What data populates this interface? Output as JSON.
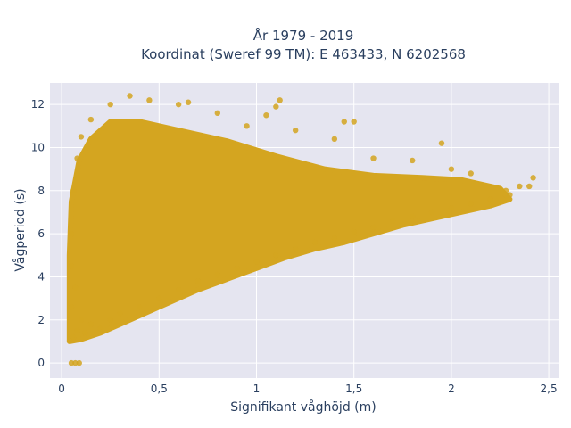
{
  "chart_data": {
    "type": "scatter",
    "title": "År 1979 - 2019",
    "subtitle": "Koordinat (Sweref 99 TM): E 463433, N 6202568",
    "xlabel": "Signifikant våghöjd (m)",
    "ylabel": "Vågperiod (s)",
    "xlim": [
      -0.06,
      2.55
    ],
    "ylim": [
      -0.7,
      13.0
    ],
    "x_ticks": [
      0,
      0.5,
      1,
      1.5,
      2,
      2.5
    ],
    "x_tick_labels": [
      "0",
      "0,5",
      "1",
      "1,5",
      "2",
      "2,5"
    ],
    "y_ticks": [
      0,
      2,
      4,
      6,
      8,
      10,
      12
    ],
    "y_tick_labels": [
      "0",
      "2",
      "4",
      "6",
      "8",
      "10",
      "12"
    ],
    "grid": true,
    "background": "#e5e5f0",
    "grid_color": "#ffffff",
    "marker_color": "#d4a520",
    "series": [
      {
        "values": [
          {
            "x": 0.05,
            "y": 0.0
          },
          {
            "x": 0.07,
            "y": 0.0
          },
          {
            "x": 0.09,
            "y": 0.0
          },
          {
            "x": 0.06,
            "y": 1.2
          },
          {
            "x": 0.08,
            "y": 1.5
          },
          {
            "x": 0.1,
            "y": 2.0
          },
          {
            "x": 0.05,
            "y": 2.6
          },
          {
            "x": 0.12,
            "y": 1.4
          },
          {
            "x": 0.15,
            "y": 1.8
          },
          {
            "x": 0.2,
            "y": 1.6
          },
          {
            "x": 0.25,
            "y": 2.0
          },
          {
            "x": 0.3,
            "y": 2.3
          },
          {
            "x": 0.4,
            "y": 2.6
          },
          {
            "x": 0.5,
            "y": 3.0
          },
          {
            "x": 0.6,
            "y": 3.4
          },
          {
            "x": 0.7,
            "y": 3.8
          },
          {
            "x": 0.8,
            "y": 4.1
          },
          {
            "x": 0.9,
            "y": 4.4
          },
          {
            "x": 1.0,
            "y": 4.7
          },
          {
            "x": 1.1,
            "y": 5.0
          },
          {
            "x": 1.2,
            "y": 5.3
          },
          {
            "x": 1.3,
            "y": 5.6
          },
          {
            "x": 1.4,
            "y": 5.8
          },
          {
            "x": 1.5,
            "y": 6.1
          },
          {
            "x": 1.6,
            "y": 6.3
          },
          {
            "x": 1.7,
            "y": 6.6
          },
          {
            "x": 1.8,
            "y": 6.8
          },
          {
            "x": 1.9,
            "y": 7.0
          },
          {
            "x": 2.0,
            "y": 7.2
          },
          {
            "x": 2.1,
            "y": 7.4
          },
          {
            "x": 2.2,
            "y": 7.6
          },
          {
            "x": 2.3,
            "y": 7.8
          },
          {
            "x": 2.35,
            "y": 8.2
          },
          {
            "x": 2.42,
            "y": 8.6
          },
          {
            "x": 2.4,
            "y": 8.2
          },
          {
            "x": 2.28,
            "y": 8.0
          },
          {
            "x": 2.1,
            "y": 8.8
          },
          {
            "x": 2.0,
            "y": 9.0
          },
          {
            "x": 1.95,
            "y": 10.2
          },
          {
            "x": 1.8,
            "y": 9.4
          },
          {
            "x": 1.6,
            "y": 9.5
          },
          {
            "x": 1.5,
            "y": 11.2
          },
          {
            "x": 1.45,
            "y": 11.2
          },
          {
            "x": 1.4,
            "y": 10.4
          },
          {
            "x": 1.2,
            "y": 10.8
          },
          {
            "x": 1.12,
            "y": 12.2
          },
          {
            "x": 1.1,
            "y": 11.9
          },
          {
            "x": 1.05,
            "y": 11.5
          },
          {
            "x": 0.95,
            "y": 11.0
          },
          {
            "x": 0.8,
            "y": 11.6
          },
          {
            "x": 0.65,
            "y": 12.1
          },
          {
            "x": 0.6,
            "y": 12.0
          },
          {
            "x": 0.45,
            "y": 12.2
          },
          {
            "x": 0.35,
            "y": 12.4
          },
          {
            "x": 0.25,
            "y": 12.0
          },
          {
            "x": 0.15,
            "y": 11.3
          },
          {
            "x": 0.1,
            "y": 10.5
          },
          {
            "x": 0.08,
            "y": 9.5
          },
          {
            "x": 0.06,
            "y": 8.0
          },
          {
            "x": 0.05,
            "y": 6.0
          },
          {
            "x": 0.05,
            "y": 4.5
          },
          {
            "x": 0.07,
            "y": 3.5
          }
        ]
      }
    ]
  }
}
